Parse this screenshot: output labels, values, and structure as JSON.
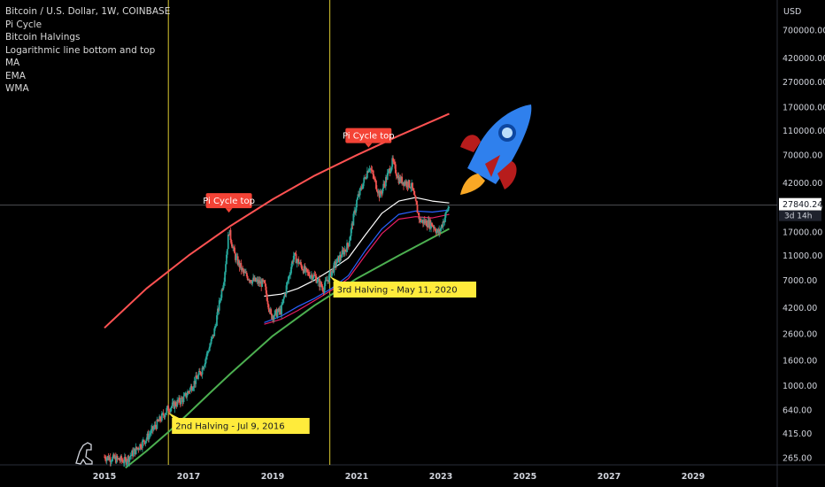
{
  "legend": {
    "symbol": "Bitcoin / U.S. Dollar, 1W, COINBASE",
    "items": [
      "Pi Cycle",
      "Bitcoin Halvings",
      "Logarithmic line bottom and top",
      "MA",
      "EMA",
      "WMA"
    ]
  },
  "chart_data": {
    "type": "line",
    "yscale": "log",
    "currency_label": "USD",
    "y_ticks": [
      265,
      415,
      640,
      1000,
      1600,
      2600,
      4200,
      7000,
      11000,
      17000,
      27000,
      42000,
      70000,
      110000,
      170000,
      270000,
      420000,
      700000
    ],
    "y_tick_labels": [
      "265.00",
      "415.00",
      "640.00",
      "1000.00",
      "1600.00",
      "2600.00",
      "4200.00",
      "7000.00",
      "11000.00",
      "17000.00",
      "27000.00",
      "42000.00",
      "70000.00",
      "110000.00",
      "170000.00",
      "270000.00",
      "420000.00",
      "700000.00"
    ],
    "x_ticks": [
      "2015",
      "2017",
      "2019",
      "2021",
      "2023",
      "2025",
      "2027",
      "2029"
    ],
    "current_price": {
      "label": "27840.24",
      "sublabel": "3d 14h",
      "value": 27840.24
    },
    "price_series": {
      "name": "BTCUSD",
      "x": [
        2015.0,
        2015.5,
        2016.0,
        2016.5,
        2016.9,
        2017.3,
        2017.6,
        2017.85,
        2017.96,
        2018.1,
        2018.3,
        2018.5,
        2018.8,
        2018.96,
        2019.2,
        2019.5,
        2019.8,
        2020.0,
        2020.2,
        2020.5,
        2020.8,
        2021.0,
        2021.3,
        2021.55,
        2021.85,
        2022.0,
        2022.3,
        2022.5,
        2022.8,
        2022.95,
        2023.2
      ],
      "y": [
        270,
        250,
        380,
        650,
        800,
        1300,
        2600,
        7500,
        17500,
        11000,
        8000,
        7000,
        6500,
        3600,
        4000,
        11000,
        8000,
        7500,
        6000,
        9500,
        13500,
        30000,
        58000,
        33000,
        62000,
        45000,
        40000,
        21000,
        19500,
        16500,
        27840
      ]
    },
    "ma_series": {
      "name": "MA",
      "x": [
        2018.8,
        2019.2,
        2019.6,
        2020.0,
        2020.4,
        2020.8,
        2021.2,
        2021.6,
        2022.0,
        2022.4,
        2022.8,
        2023.2
      ],
      "y": [
        5200,
        5400,
        6000,
        7000,
        8500,
        10500,
        16000,
        24000,
        30000,
        32000,
        30000,
        29000
      ]
    },
    "ema_series": {
      "name": "EMA",
      "x": [
        2018.8,
        2019.2,
        2019.6,
        2020.0,
        2020.4,
        2020.8,
        2021.2,
        2021.6,
        2022.0,
        2022.4,
        2022.8,
        2023.2
      ],
      "y": [
        3200,
        3600,
        4300,
        5000,
        6000,
        7600,
        12000,
        18000,
        23500,
        25000,
        24500,
        25500
      ]
    },
    "wma_series": {
      "name": "WMA",
      "x": [
        2018.8,
        2019.2,
        2019.6,
        2020.0,
        2020.4,
        2020.8,
        2021.2,
        2021.6,
        2022.0,
        2022.4,
        2022.8,
        2023.2
      ],
      "y": [
        3100,
        3400,
        4000,
        4800,
        5800,
        7200,
        11000,
        16500,
        21500,
        22500,
        22000,
        23500
      ]
    },
    "log_top": {
      "name": "Logarithmic line top",
      "x": [
        2015.0,
        2016.0,
        2017.0,
        2018.0,
        2019.0,
        2020.0,
        2021.0,
        2022.0,
        2023.2
      ],
      "y": [
        2900,
        6000,
        11000,
        19000,
        31000,
        48000,
        70000,
        100000,
        150000
      ]
    },
    "log_bottom": {
      "name": "Logarithmic line bottom",
      "x": [
        2015.5,
        2016.0,
        2016.5,
        2017.0,
        2017.5,
        2018.0,
        2019.0,
        2020.0,
        2021.0,
        2022.0,
        2023.2
      ],
      "y": [
        220,
        300,
        420,
        600,
        870,
        1250,
        2500,
        4400,
        7200,
        11000,
        18000
      ]
    },
    "halvings": [
      {
        "x": 2016.52,
        "label": "2nd Halving - Jul 9, 2016"
      },
      {
        "x": 2020.36,
        "label": "3rd Halving - May 11, 2020"
      }
    ],
    "annotations": [
      {
        "x": 2017.96,
        "y": 17500,
        "label": "Pi Cycle top"
      },
      {
        "x": 2021.28,
        "y": 58000,
        "label": "Pi Cycle top"
      }
    ],
    "colors": {
      "background": "#000000",
      "price_up": "#26a69a",
      "price_down": "#ef5350",
      "log_top": "#ff5252",
      "log_bottom": "#4caf50",
      "halving": "#ffeb3b",
      "pi_cycle": "#f44336",
      "ma": "#ffffff",
      "ema": "#2962ff",
      "wma": "#e91e63"
    },
    "rocket_icon": "rocket-icon",
    "watermark_icon": "dinosaur-icon"
  }
}
